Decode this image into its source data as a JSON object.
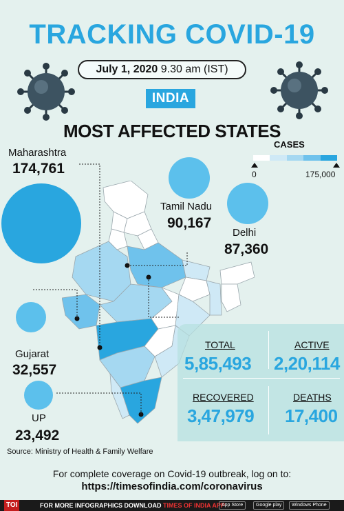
{
  "header": {
    "title": "TRACKING COVID-19",
    "date": "July 1, 2020",
    "time": "9.30 am (IST)",
    "country": "INDIA",
    "section_title": "MOST AFFECTED STATES"
  },
  "legend": {
    "title": "CASES",
    "min_label": "0",
    "max_label": "175,000",
    "colors": [
      "#ffffff",
      "#cfe9f6",
      "#a5d8f1",
      "#6fc2ec",
      "#29a6df"
    ]
  },
  "states": [
    {
      "name": "Maharashtra",
      "cases": "174,761"
    },
    {
      "name": "Tamil Nadu",
      "cases": "90,167"
    },
    {
      "name": "Delhi",
      "cases": "87,360"
    },
    {
      "name": "Gujarat",
      "cases": "32,557"
    },
    {
      "name": "UP",
      "cases": "23,492"
    }
  ],
  "stats": {
    "total_label": "TOTAL",
    "total_value": "5,85,493",
    "active_label": "ACTIVE",
    "active_value": "2,20,114",
    "recovered_label": "RECOVERED",
    "recovered_value": "3,47,979",
    "deaths_label": "DEATHS",
    "deaths_value": "17,400"
  },
  "source": "Source: Ministry of Health & Family Welfare",
  "coverage": {
    "line": "For complete coverage on Covid-19 outbreak, log on to:",
    "url": "https://timesofindia.com/coronavirus"
  },
  "footer": {
    "logo": "TOI",
    "text_prefix": "FOR MORE  INFOGRAPHICS DOWNLOAD",
    "text_app": "TIMES OF INDIA",
    "text_suffix": "APP",
    "app_store": "App Store",
    "google_play": "Google play",
    "windows": "Windows Phone"
  }
}
